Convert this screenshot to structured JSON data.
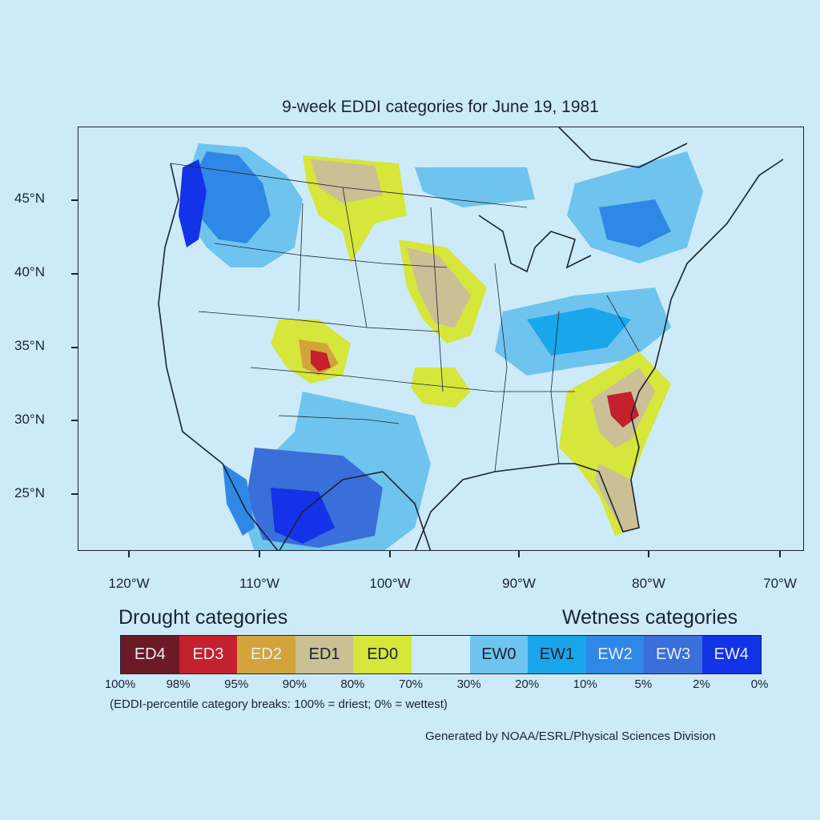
{
  "title": "9-week EDDI categories for June 19, 1981",
  "lat_labels": [
    "45°N",
    "40°N",
    "35°N",
    "30°N",
    "25°N"
  ],
  "lon_labels": [
    "120°W",
    "110°W",
    "100°W",
    "90°W",
    "80°W",
    "70°W"
  ],
  "drought_title": "Drought categories",
  "wetness_title": "Wetness categories",
  "categories": [
    {
      "label": "ED4",
      "color": "#6b1a26",
      "text_color": "#e8eef5"
    },
    {
      "label": "ED3",
      "color": "#c4202e",
      "text_color": "#e8eef5"
    },
    {
      "label": "ED2",
      "color": "#d4a43c",
      "text_color": "#e8eef5"
    },
    {
      "label": "ED1",
      "color": "#cbbf96",
      "text_color": "#1a2330"
    },
    {
      "label": "ED0",
      "color": "#d6e63a",
      "text_color": "#1a2330"
    },
    {
      "label": "",
      "color": "#cdeaf8",
      "text_color": "#1a2330"
    },
    {
      "label": "EW0",
      "color": "#6ec4ee",
      "text_color": "#1a2330"
    },
    {
      "label": "EW1",
      "color": "#1aa6ea",
      "text_color": "#1a2330"
    },
    {
      "label": "EW2",
      "color": "#2f88e6",
      "text_color": "#e8eef5"
    },
    {
      "label": "EW3",
      "color": "#3a6ed8",
      "text_color": "#e8eef5"
    },
    {
      "label": "EW4",
      "color": "#1432e8",
      "text_color": "#e8eef5"
    }
  ],
  "breaks": [
    "100%",
    "98%",
    "95%",
    "90%",
    "80%",
    "70%",
    "30%",
    "20%",
    "10%",
    "5%",
    "2%",
    "0%"
  ],
  "note": "(EDDI-percentile category breaks: 100% = driest; 0% = wettest)",
  "credit": "Generated by NOAA/ESRL/Physical Sciences Division"
}
